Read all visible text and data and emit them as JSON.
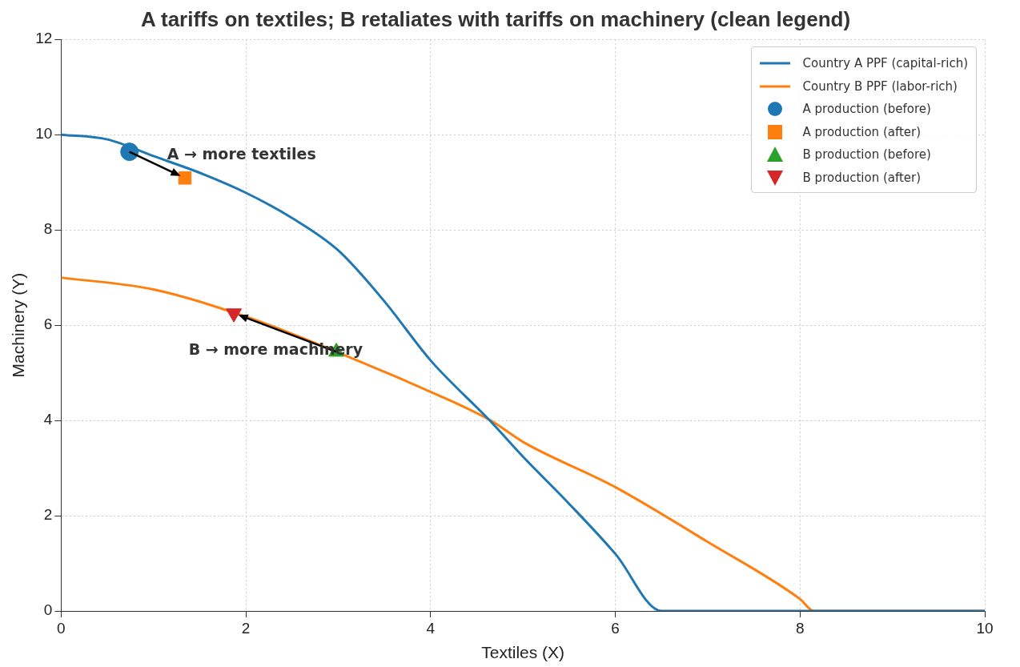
{
  "chart_data": {
    "type": "line",
    "title": "A tariffs on textiles; B retaliates with tariffs on machinery (clean legend)",
    "xlabel": "Textiles (X)",
    "ylabel": "Machinery (Y)",
    "xlim": [
      0,
      10
    ],
    "ylim": [
      0,
      12
    ],
    "xticks": [
      0,
      2,
      4,
      6,
      8,
      10
    ],
    "yticks": [
      0,
      2,
      4,
      6,
      8,
      10,
      12
    ],
    "grid": true,
    "legend": "top right",
    "series": [
      {
        "name": "Country A PPF (capital-rich)",
        "color": "#1f77b4",
        "marker": "none",
        "x": [
          0,
          0.5,
          1,
          1.5,
          2,
          2.5,
          3,
          3.5,
          4,
          4.65,
          5,
          5.5,
          6,
          6.5,
          10
        ],
        "values": [
          10,
          9.9,
          9.55,
          9.2,
          8.78,
          8.25,
          7.57,
          6.5,
          5.26,
          3.98,
          3.24,
          2.25,
          1.2,
          0,
          0
        ]
      },
      {
        "name": "Country B PPF (labor-rich)",
        "color": "#ff7f0e",
        "marker": "none",
        "x": [
          0,
          1,
          2,
          2.5,
          3.5,
          4,
          4.65,
          5,
          6,
          7,
          8,
          8.15,
          10
        ],
        "values": [
          7,
          6.75,
          6.18,
          5.82,
          5.02,
          4.6,
          4.0,
          3.55,
          2.6,
          1.45,
          0.25,
          0,
          0
        ]
      },
      {
        "name": "A production (before)",
        "type": "scatter",
        "color": "#1f77b4",
        "marker": "circle",
        "x": [
          0.74
        ],
        "values": [
          9.64
        ]
      },
      {
        "name": "A production (after)",
        "type": "scatter",
        "color": "#ff7f0e",
        "marker": "square",
        "x": [
          1.34
        ],
        "values": [
          9.09
        ]
      },
      {
        "name": "B production (before)",
        "type": "scatter",
        "color": "#2ca02c",
        "marker": "triangle",
        "x": [
          2.98
        ],
        "values": [
          5.44
        ]
      },
      {
        "name": "B production (after)",
        "type": "scatter",
        "color": "#d62728",
        "marker": "triangle-down",
        "x": [
          1.87
        ],
        "values": [
          6.25
        ]
      }
    ],
    "annotations": [
      {
        "text": "A → more textiles",
        "x": 0.74,
        "y": 9.64
      },
      {
        "text": "B → more machinery",
        "x": 2.98,
        "y": 5.44
      }
    ]
  }
}
